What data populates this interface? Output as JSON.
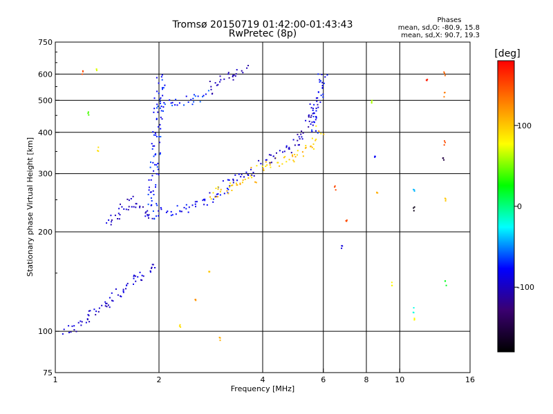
{
  "chart_data": {
    "type": "scatter",
    "title": "Tromsø 20150719 01:42:00-01:43:43",
    "subtitle": "RwPretec (8p)",
    "stats": {
      "header": "Phases",
      "line_o": "mean, sd,O: -80.9, 15.8",
      "line_x": "mean, sd,X:  90.7, 19.3"
    },
    "xlabel": "Frequency [MHz]",
    "ylabel": "Stationary phase Virtual Height [km]",
    "x_scale": "log",
    "y_scale": "log",
    "xlim": [
      1,
      16
    ],
    "ylim": [
      75,
      750
    ],
    "x_ticks": [
      1,
      2,
      4,
      6,
      8,
      10,
      16
    ],
    "x_tick_labels": [
      "1",
      "2",
      "4",
      "6",
      "8",
      "10",
      "16"
    ],
    "x_gridlines": [
      2,
      4,
      6,
      8,
      10
    ],
    "y_ticks": [
      75,
      100,
      200,
      300,
      400,
      500,
      600,
      750
    ],
    "y_tick_labels": [
      "75",
      "100",
      "200",
      "300",
      "400",
      "500",
      "600",
      "750"
    ],
    "y_gridlines": [
      100,
      200,
      300,
      400,
      500,
      600
    ],
    "grid": true,
    "colorbar": {
      "label": "[deg]",
      "range": [
        -180,
        180
      ],
      "ticks": [
        100,
        0,
        -100
      ],
      "tick_labels": [
        "100",
        "0",
        "-100"
      ],
      "colors": [
        "#000000",
        "#3a0070",
        "#0000ff",
        "#00ffff",
        "#00ff00",
        "#ffff00",
        "#ff8000",
        "#ff0000"
      ]
    },
    "traces": [
      {
        "x": [
          1.05,
          1.15,
          1.25,
          1.35,
          1.45,
          1.55,
          1.65,
          1.75,
          1.85,
          1.95
        ],
        "y": [
          100,
          103,
          110,
          118,
          125,
          132,
          138,
          145,
          150,
          160
        ],
        "phase": -95
      },
      {
        "x": [
          1.4,
          1.5,
          1.6,
          1.7,
          1.8,
          1.9
        ],
        "y": [
          210,
          225,
          240,
          250,
          230,
          215
        ],
        "phase": -100
      },
      {
        "x": [
          1.9,
          1.93,
          1.96,
          1.99,
          2.02
        ],
        "y": [
          220,
          280,
          350,
          450,
          600
        ],
        "phase": -75
      },
      {
        "x": [
          2.0,
          2.2,
          2.4,
          2.6,
          2.8,
          3.0,
          3.2,
          3.4,
          3.6,
          3.8
        ],
        "y": [
          230,
          232,
          236,
          242,
          250,
          262,
          278,
          292,
          300,
          305
        ],
        "phase": -85
      },
      {
        "x": [
          2.8,
          3.0,
          3.2,
          3.4,
          3.6,
          3.8
        ],
        "y": [
          255,
          262,
          270,
          278,
          285,
          292
        ],
        "phase": 100
      },
      {
        "x": [
          2.0,
          2.2,
          2.4,
          2.6,
          2.8
        ],
        "y": [
          480,
          490,
          500,
          510,
          530
        ],
        "phase": -70
      },
      {
        "x": [
          2.8,
          3.0,
          3.2,
          3.4,
          3.6
        ],
        "y": [
          540,
          570,
          590,
          610,
          630
        ],
        "phase": -105
      },
      {
        "x": [
          3.8,
          4.2,
          4.6,
          5.0,
          5.4,
          5.7,
          5.9
        ],
        "y": [
          310,
          320,
          330,
          340,
          360,
          380,
          410
        ],
        "phase": 100
      },
      {
        "x": [
          4.0,
          4.4,
          4.8,
          5.2,
          5.5,
          5.7
        ],
        "y": [
          320,
          340,
          360,
          385,
          430,
          500
        ],
        "phase": -100
      },
      {
        "x": [
          5.6,
          5.7,
          5.8,
          5.9,
          6.0
        ],
        "y": [
          400,
          450,
          500,
          560,
          620
        ],
        "phase": -80
      }
    ],
    "scattered_points": [
      {
        "x": 1.2,
        "y": 610,
        "phase": 150
      },
      {
        "x": 1.32,
        "y": 610,
        "phase": 70
      },
      {
        "x": 1.33,
        "y": 355,
        "phase": 90
      },
      {
        "x": 1.25,
        "y": 460,
        "phase": 40
      },
      {
        "x": 2.3,
        "y": 105,
        "phase": 90
      },
      {
        "x": 2.55,
        "y": 125,
        "phase": 120
      },
      {
        "x": 2.8,
        "y": 152,
        "phase": 100
      },
      {
        "x": 3.0,
        "y": 95,
        "phase": 110
      },
      {
        "x": 6.5,
        "y": 270,
        "phase": 150
      },
      {
        "x": 6.8,
        "y": 180,
        "phase": -90
      },
      {
        "x": 7.0,
        "y": 215,
        "phase": 150
      },
      {
        "x": 8.3,
        "y": 500,
        "phase": 60
      },
      {
        "x": 8.5,
        "y": 340,
        "phase": -80
      },
      {
        "x": 8.6,
        "y": 260,
        "phase": 110
      },
      {
        "x": 9.5,
        "y": 140,
        "phase": 80
      },
      {
        "x": 11.0,
        "y": 265,
        "phase": -40
      },
      {
        "x": 11.0,
        "y": 235,
        "phase": -170
      },
      {
        "x": 11.0,
        "y": 116,
        "phase": -20
      },
      {
        "x": 11.0,
        "y": 108,
        "phase": 80
      },
      {
        "x": 12.0,
        "y": 570,
        "phase": 170
      },
      {
        "x": 13.5,
        "y": 600,
        "phase": 140
      },
      {
        "x": 13.5,
        "y": 520,
        "phase": 130
      },
      {
        "x": 13.5,
        "y": 370,
        "phase": 150
      },
      {
        "x": 13.4,
        "y": 335,
        "phase": -150
      },
      {
        "x": 13.6,
        "y": 252,
        "phase": 100
      },
      {
        "x": 13.6,
        "y": 140,
        "phase": 20
      }
    ]
  }
}
